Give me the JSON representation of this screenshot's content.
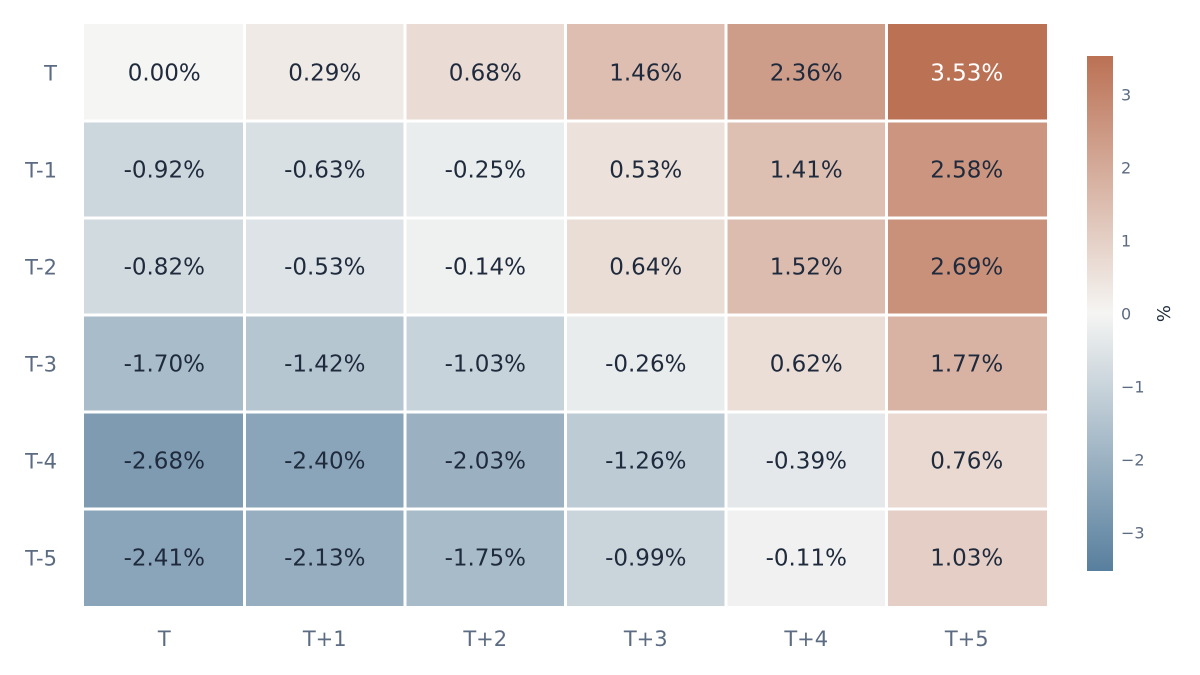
{
  "chart_data": {
    "type": "heatmap",
    "x_categories": [
      "T",
      "T+1",
      "T+2",
      "T+3",
      "T+4",
      "T+5"
    ],
    "y_categories": [
      "T",
      "T-1",
      "T-2",
      "T-3",
      "T-4",
      "T-5"
    ],
    "values": [
      [
        0.0,
        0.29,
        0.68,
        1.46,
        2.36,
        3.53
      ],
      [
        -0.92,
        -0.63,
        -0.25,
        0.53,
        1.41,
        2.58
      ],
      [
        -0.82,
        -0.53,
        -0.14,
        0.64,
        1.52,
        2.69
      ],
      [
        -1.7,
        -1.42,
        -1.03,
        -0.26,
        0.62,
        1.77
      ],
      [
        -2.68,
        -2.4,
        -2.03,
        -1.26,
        -0.39,
        0.76
      ],
      [
        -2.41,
        -2.13,
        -1.75,
        -0.99,
        -0.11,
        1.03
      ]
    ],
    "cell_labels": [
      [
        "0.00%",
        "0.29%",
        "0.68%",
        "1.46%",
        "2.36%",
        "3.53%"
      ],
      [
        "-0.92%",
        "-0.63%",
        "-0.25%",
        "0.53%",
        "1.41%",
        "2.58%"
      ],
      [
        "-0.82%",
        "-0.53%",
        "-0.14%",
        "0.64%",
        "1.52%",
        "2.69%"
      ],
      [
        "-1.70%",
        "-1.42%",
        "-1.03%",
        "-0.26%",
        "0.62%",
        "1.77%"
      ],
      [
        "-2.68%",
        "-2.40%",
        "-2.03%",
        "-1.26%",
        "-0.39%",
        "0.76%"
      ],
      [
        "-2.41%",
        "-2.13%",
        "-1.75%",
        "-0.99%",
        "-0.11%",
        "1.03%"
      ]
    ],
    "colorbar": {
      "title": "%",
      "range": [
        -3.53,
        3.53
      ],
      "ticks": [
        3,
        2,
        1,
        0,
        -1,
        -2,
        -3
      ],
      "tick_labels": [
        "3",
        "2",
        "1",
        "0",
        "−1",
        "−2",
        "−3"
      ]
    },
    "colors": {
      "negative": "#587f9e",
      "mid": "#f5f5f3",
      "positive": "#bb7154",
      "text_dark": "#1f2a3c",
      "text_light": "#ffffff"
    },
    "legend": "right",
    "grid": false
  }
}
